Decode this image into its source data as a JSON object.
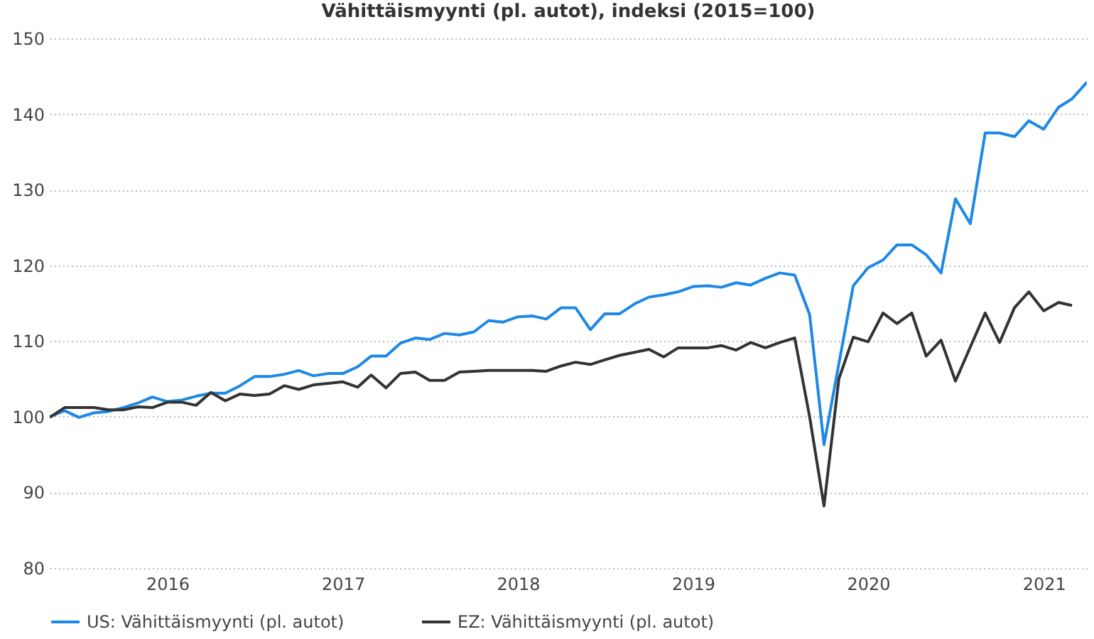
{
  "chart_data": {
    "type": "line",
    "title": "Vähittäismyynti (pl. autot), indeksi (2015=100)",
    "x": [
      "2015-05",
      "2015-06",
      "2015-07",
      "2015-08",
      "2015-09",
      "2015-10",
      "2015-11",
      "2015-12",
      "2016-01",
      "2016-02",
      "2016-03",
      "2016-04",
      "2016-05",
      "2016-06",
      "2016-07",
      "2016-08",
      "2016-09",
      "2016-10",
      "2016-11",
      "2016-12",
      "2017-01",
      "2017-02",
      "2017-03",
      "2017-04",
      "2017-05",
      "2017-06",
      "2017-07",
      "2017-08",
      "2017-09",
      "2017-10",
      "2017-11",
      "2017-12",
      "2018-01",
      "2018-02",
      "2018-03",
      "2018-04",
      "2018-05",
      "2018-06",
      "2018-07",
      "2018-08",
      "2018-09",
      "2018-10",
      "2018-11",
      "2018-12",
      "2019-01",
      "2019-02",
      "2019-03",
      "2019-04",
      "2019-05",
      "2019-06",
      "2019-07",
      "2019-08",
      "2019-09",
      "2019-10",
      "2019-11",
      "2019-12",
      "2020-01",
      "2020-02",
      "2020-03",
      "2020-04",
      "2020-05",
      "2020-06",
      "2020-07",
      "2020-08",
      "2020-09",
      "2020-10",
      "2020-11",
      "2020-12",
      "2021-01",
      "2021-02",
      "2021-03",
      "2021-04"
    ],
    "series": [
      {
        "name": "US: Vähittäismyynti (pl. autot)",
        "color": "#1e88e5",
        "values": [
          100,
          100.8,
          99.9,
          100.5,
          100.7,
          101.2,
          101.8,
          102.6,
          102,
          102.2,
          102.7,
          103.1,
          103.1,
          104.1,
          105.3,
          105.3,
          105.6,
          106.1,
          105.4,
          105.7,
          105.7,
          106.6,
          108,
          108,
          109.7,
          110.4,
          110.2,
          111,
          110.8,
          111.2,
          112.7,
          112.5,
          113.2,
          113.3,
          112.9,
          114.4,
          114.4,
          111.5,
          113.6,
          113.6,
          114.9,
          115.8,
          116.1,
          116.5,
          117.2,
          117.3,
          117.1,
          117.7,
          117.4,
          118.3,
          119,
          118.7,
          113.5,
          96.3,
          107,
          117.3,
          119.7,
          120.7,
          122.7,
          122.7,
          121.4,
          119,
          128.8,
          125.5,
          137.5,
          137.5,
          137,
          139.1,
          138,
          140.9,
          142,
          144.2
        ]
      },
      {
        "name": "EZ: Vähittäismyynti (pl. autot)",
        "color": "#333333",
        "values": [
          99.9,
          101.2,
          101.2,
          101.2,
          100.9,
          100.9,
          101.3,
          101.2,
          101.9,
          101.9,
          101.5,
          103.2,
          102.1,
          103,
          102.8,
          103,
          104.1,
          103.6,
          104.2,
          104.4,
          104.6,
          103.9,
          105.5,
          103.8,
          105.7,
          105.9,
          104.8,
          104.8,
          105.9,
          106,
          106.1,
          106.1,
          106.1,
          106.1,
          106,
          106.7,
          107.2,
          106.9,
          107.5,
          108.1,
          108.5,
          108.9,
          107.9,
          109.1,
          109.1,
          109.1,
          109.4,
          108.8,
          109.8,
          109.1,
          109.8,
          110.4,
          100,
          88.2,
          105,
          110.5,
          109.9,
          113.7,
          112.3,
          113.7,
          108,
          110.1,
          104.7,
          109.2,
          113.7,
          109.8,
          114.4,
          116.5,
          114,
          115.1,
          114.7,
          null
        ]
      }
    ],
    "xlim": [
      "2015-05",
      "2021-04"
    ],
    "xticks": [
      {
        "value": "2016-01",
        "label": "2016"
      },
      {
        "value": "2017-01",
        "label": "2017"
      },
      {
        "value": "2018-01",
        "label": "2018"
      },
      {
        "value": "2019-01",
        "label": "2019"
      },
      {
        "value": "2020-01",
        "label": "2020"
      },
      {
        "value": "2021-01",
        "label": "2021"
      }
    ],
    "ylim": [
      80,
      150
    ],
    "yticks": [
      80,
      90,
      100,
      110,
      120,
      130,
      140,
      150
    ],
    "grid": "y",
    "legend": "bottom left",
    "marker": "none",
    "line_style": "solid"
  }
}
